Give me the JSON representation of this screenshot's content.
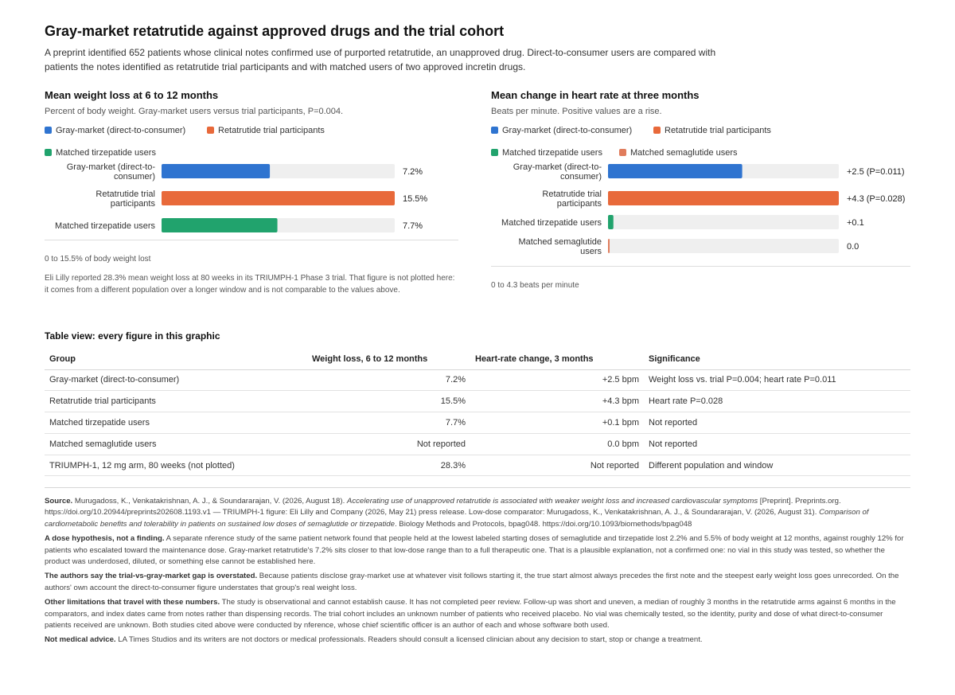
{
  "page": {
    "title": "Gray-market retatrutide against approved drugs and the trial cohort",
    "intro": "A preprint identified 652 patients whose clinical notes confirmed use of purported retatrutide, an unapproved drug. Direct-to-consumer users are compared with patients the notes identified as retatrutide trial participants and with matched users of two approved incretin drugs."
  },
  "colors": {
    "gray_market": "#2f74d0",
    "trial": "#e8693a",
    "tirzepatide": "#21a36d",
    "semaglutide": "#e07c5c",
    "track": "#efefef"
  },
  "chart_data": [
    {
      "type": "bar",
      "orientation": "horizontal",
      "title": "Mean weight loss at 6 to 12 months",
      "subtitle": "Percent of body weight. Gray-market users versus trial participants, P=0.004.",
      "legend": [
        "Gray-market (direct-to-consumer)",
        "Retatrutide trial participants",
        "Matched tirzepatide users"
      ],
      "categories": [
        "Gray-market (direct-to-consumer)",
        "Retatrutide trial participants",
        "Matched tirzepatide users"
      ],
      "values": [
        7.2,
        15.5,
        7.7
      ],
      "value_labels": [
        "7.2%",
        "15.5%",
        "7.7%"
      ],
      "xlim": [
        0,
        15.5
      ],
      "range_note": "0 to 15.5% of body weight lost",
      "footnote": "Eli Lilly reported 28.3% mean weight loss at 80 weeks in its TRIUMPH-1 Phase 3 trial. That figure is not plotted here: it comes from a different population over a longer window and is not comparable to the values above."
    },
    {
      "type": "bar",
      "orientation": "horizontal",
      "title": "Mean change in heart rate at three months",
      "subtitle": "Beats per minute. Positive values are a rise.",
      "legend": [
        "Gray-market (direct-to-consumer)",
        "Retatrutide trial participants",
        "Matched tirzepatide users",
        "Matched semaglutide users"
      ],
      "categories": [
        "Gray-market (direct-to-consumer)",
        "Retatrutide trial participants",
        "Matched tirzepatide users",
        "Matched semaglutide users"
      ],
      "values": [
        2.5,
        4.3,
        0.1,
        0.0
      ],
      "value_labels": [
        "+2.5 (P=0.011)",
        "+4.3 (P=0.028)",
        "+0.1",
        "0.0"
      ],
      "xlim": [
        0,
        4.3
      ],
      "range_note": "0 to 4.3 beats per minute"
    }
  ],
  "table": {
    "title": "Table view: every figure in this graphic",
    "headers": [
      "Group",
      "Weight loss, 6 to 12 months",
      "Heart-rate change, 3 months",
      "Significance"
    ],
    "rows": [
      [
        "Gray-market (direct-to-consumer)",
        "7.2%",
        "+2.5 bpm",
        "Weight loss vs. trial P=0.004; heart rate P=0.011"
      ],
      [
        "Retatrutide trial participants",
        "15.5%",
        "+4.3 bpm",
        "Heart rate P=0.028"
      ],
      [
        "Matched tirzepatide users",
        "7.7%",
        "+0.1 bpm",
        "Not reported"
      ],
      [
        "Matched semaglutide users",
        "Not reported",
        "0.0 bpm",
        "Not reported"
      ],
      [
        "TRIUMPH-1, 12 mg arm, 80 weeks (not plotted)",
        "28.3%",
        "Not reported",
        "Different population and window"
      ]
    ]
  },
  "notes": {
    "source_label": "Source.",
    "source_a": "Murugadoss, K., Venkatakrishnan, A. J., & Soundararajan, V. (2026, August 18).",
    "source_a_title": "Accelerating use of unapproved retatrutide is associated with weaker weight loss and increased cardiovascular symptoms",
    "source_b": "[Preprint]. Preprints.org. https://doi.org/10.20944/preprints202608.1193.v1 — TRIUMPH-1 figure: Eli Lilly and Company (2026, May 21) press release. Low-dose comparator: Murugadoss, K., Venkatakrishnan, A. J., & Soundararajan, V. (2026, August 31).",
    "source_b_title": "Comparison of cardiometabolic benefits and tolerability in patients on sustained low doses of semaglutide or tirzepatide",
    "source_c": ". Biology Methods and Protocols, bpag048. https://doi.org/10.1093/biomethods/bpag048",
    "dose_label": "A dose hypothesis, not a finding.",
    "dose_text": "A separate nference study of the same patient network found that people held at the lowest labeled starting doses of semaglutide and tirzepatide lost 2.2% and 5.5% of body weight at 12 months, against roughly 12% for patients who escalated toward the maintenance dose. Gray-market retatrutide's 7.2% sits closer to that low-dose range than to a full therapeutic one. That is a plausible explanation, not a confirmed one: no vial in this study was tested, so whether the product was underdosed, diluted, or something else cannot be established here.",
    "gap_label": "The authors say the trial-vs-gray-market gap is overstated.",
    "gap_text": "Because patients disclose gray-market use at whatever visit follows starting it, the true start almost always precedes the first note and the steepest early weight loss goes unrecorded. On the authors' own account the direct-to-consumer figure understates that group's real weight loss.",
    "limits_label": "Other limitations that travel with these numbers.",
    "limits_text": "The study is observational and cannot establish cause. It has not completed peer review. Follow-up was short and uneven, a median of roughly 3 months in the retatrutide arms against 6 months in the comparators, and index dates came from notes rather than dispensing records. The trial cohort includes an unknown number of patients who received placebo. No vial was chemically tested, so the identity, purity and dose of what direct-to-consumer patients received are unknown. Both studies cited above were conducted by nference, whose chief scientific officer is an author of each and whose software both used.",
    "advice_label": "Not medical advice.",
    "advice_text": "LA Times Studios and its writers are not doctors or medical professionals. Readers should consult a licensed clinician about any decision to start, stop or change a treatment."
  }
}
